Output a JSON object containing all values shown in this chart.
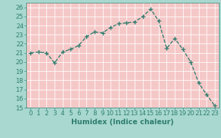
{
  "x": [
    0,
    1,
    2,
    3,
    4,
    5,
    6,
    7,
    8,
    9,
    10,
    11,
    12,
    13,
    14,
    15,
    16,
    17,
    18,
    19,
    20,
    21,
    22,
    23
  ],
  "y": [
    21.0,
    21.1,
    21.0,
    19.9,
    21.1,
    21.4,
    21.8,
    22.8,
    23.3,
    23.2,
    23.8,
    24.2,
    24.3,
    24.4,
    25.0,
    25.8,
    24.5,
    21.5,
    22.6,
    21.4,
    20.0,
    17.7,
    16.4,
    15.2
  ],
  "line_color": "#2e7d6e",
  "marker": "+",
  "marker_size": 4,
  "marker_edge_width": 1.0,
  "plot_bg_color": "#f5c8c8",
  "outer_bg_color": "#a8d8d0",
  "grid_color": "#ffffff",
  "xlabel": "Humidex (Indice chaleur)",
  "ylabel_ticks": [
    15,
    16,
    17,
    18,
    19,
    20,
    21,
    22,
    23,
    24,
    25,
    26
  ],
  "ylim": [
    15,
    26.5
  ],
  "xlim": [
    -0.5,
    23.5
  ],
  "tick_fontsize": 6.5,
  "xlabel_fontsize": 7.5,
  "line_width": 1.0,
  "xlabel_color": "#2e7d6e",
  "xlabel_fontweight": "bold"
}
